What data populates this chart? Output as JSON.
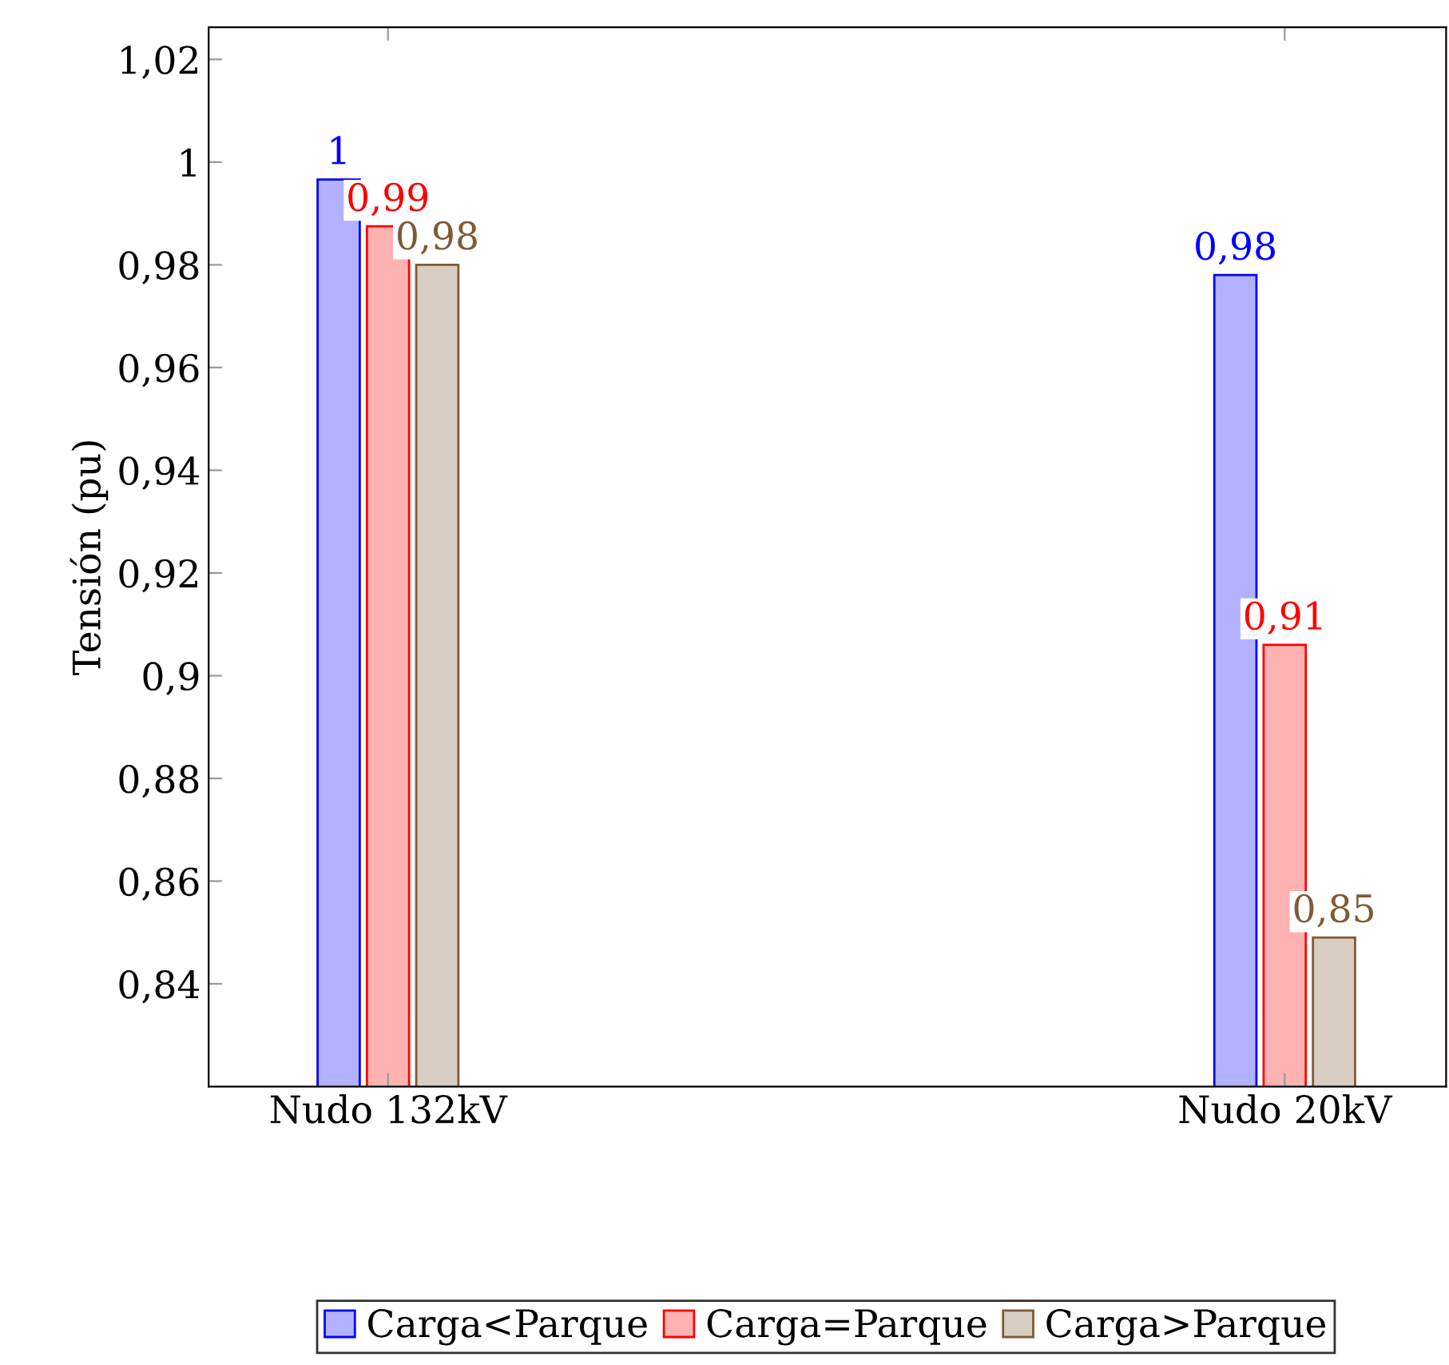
{
  "chart_data": {
    "type": "bar",
    "ylabel": "Tensión (pu)",
    "categories": [
      "Nudo 132kV",
      "Nudo 20kV"
    ],
    "series": [
      {
        "name": "Carga<Parque",
        "color": "#0000ff",
        "values": [
          0.9966,
          0.978
        ],
        "value_labels": [
          "1",
          "0,98"
        ]
      },
      {
        "name": "Carga=Parque",
        "color": "#ff0000",
        "values": [
          0.9875,
          0.906
        ],
        "value_labels": [
          "0,99",
          "0,91"
        ]
      },
      {
        "name": "Carga>Parque",
        "color": "#7f5a33",
        "values": [
          0.98,
          0.849
        ],
        "value_labels": [
          "0,98",
          "0,85"
        ]
      }
    ],
    "ylim": [
      0.82,
      1.02625
    ],
    "yticks": [
      {
        "value": 0.84,
        "label": "0,84"
      },
      {
        "value": 0.86,
        "label": "0,86"
      },
      {
        "value": 0.88,
        "label": "0,88"
      },
      {
        "value": 0.9,
        "label": "0,9"
      },
      {
        "value": 0.92,
        "label": "0,92"
      },
      {
        "value": 0.94,
        "label": "0,94"
      },
      {
        "value": 0.96,
        "label": "0,96"
      },
      {
        "value": 0.98,
        "label": "0,98"
      },
      {
        "value": 1.0,
        "label": "1"
      },
      {
        "value": 1.02,
        "label": "1,02"
      }
    ],
    "grid": false,
    "legend": "bottom"
  }
}
